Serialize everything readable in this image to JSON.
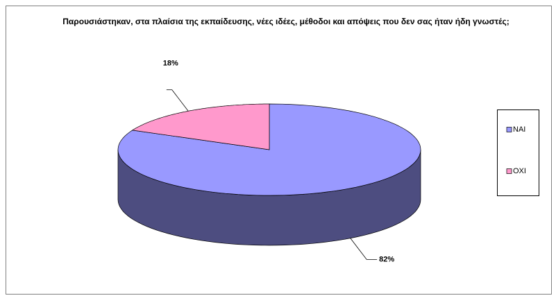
{
  "chart_data": {
    "type": "pie3d",
    "title": "Παρουσιάστηκαν, στα πλαίσια της εκπαίδευσης, νέες ιδέες, μέθοδοι και απόψεις που δεν σας ήταν ήδη γνωστές;",
    "categories": [
      "NAI",
      "OXI"
    ],
    "values": [
      82,
      18
    ],
    "value_labels": [
      "82%",
      "18%"
    ],
    "colors": [
      "#9999ff",
      "#ff99cc"
    ],
    "legend": "right"
  }
}
